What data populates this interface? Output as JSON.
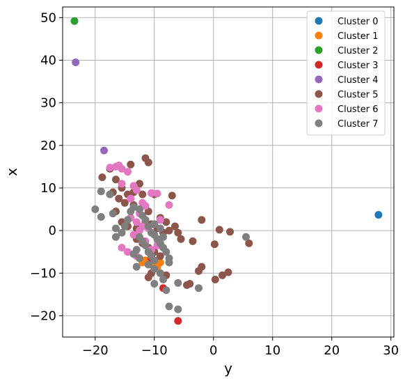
{
  "chart_data": {
    "type": "scatter",
    "title": "",
    "xlabel": "y",
    "ylabel": "x",
    "xlim": [
      -25.5,
      30.5
    ],
    "ylim": [
      -25.0,
      52.5
    ],
    "xticks": [
      -20,
      -10,
      0,
      10,
      20,
      30
    ],
    "yticks": [
      -20,
      -10,
      0,
      10,
      20,
      30,
      40,
      50
    ],
    "xtick_labels": [
      "−20",
      "−10",
      "0",
      "10",
      "20",
      "30"
    ],
    "ytick_labels": [
      "−20",
      "−10",
      "0",
      "10",
      "20",
      "30",
      "40",
      "50"
    ],
    "grid": true,
    "legend_position": "upper-right",
    "series": [
      {
        "name": "Cluster 0",
        "color": "#1f77b4",
        "points": [
          [
            27.9,
            3.7
          ]
        ]
      },
      {
        "name": "Cluster 1",
        "color": "#ff7f0e",
        "points": [
          [
            -12.0,
            -7.5
          ],
          [
            -11.5,
            -7.0
          ],
          [
            -10.5,
            -8.0
          ],
          [
            -9.5,
            -8.5
          ],
          [
            -9.0,
            -7.5
          ]
        ]
      },
      {
        "name": "Cluster 2",
        "color": "#2ca02c",
        "points": [
          [
            -23.5,
            49.2
          ]
        ]
      },
      {
        "name": "Cluster 3",
        "color": "#d62728",
        "points": [
          [
            -8.5,
            -13.5
          ],
          [
            -6.0,
            -21.2
          ],
          [
            -10.5,
            -6.5
          ]
        ]
      },
      {
        "name": "Cluster 4",
        "color": "#9467bd",
        "points": [
          [
            -23.3,
            39.5
          ],
          [
            -18.5,
            18.8
          ]
        ]
      },
      {
        "name": "Cluster 5",
        "color": "#8c564b",
        "points": [
          [
            -18.8,
            12.5
          ],
          [
            -17.5,
            14.5
          ],
          [
            -16.5,
            12.0
          ],
          [
            -15.5,
            10.0
          ],
          [
            -14.0,
            15.5
          ],
          [
            -12.5,
            11.0
          ],
          [
            -11.5,
            17.0
          ],
          [
            -11.0,
            16.0
          ],
          [
            -14.5,
            8.5
          ],
          [
            -13.5,
            9.0
          ],
          [
            -12.0,
            8.5
          ],
          [
            -10.0,
            8.5
          ],
          [
            -7.0,
            8.2
          ],
          [
            -15.0,
            6.5
          ],
          [
            -13.5,
            6.0
          ],
          [
            -12.5,
            5.0
          ],
          [
            -11.0,
            4.5
          ],
          [
            -16.5,
            4.5
          ],
          [
            -15.5,
            2.0
          ],
          [
            -14.5,
            1.0
          ],
          [
            -13.0,
            0.5
          ],
          [
            -11.5,
            2.0
          ],
          [
            -10.5,
            1.5
          ],
          [
            -9.5,
            0.5
          ],
          [
            -8.5,
            -0.5
          ],
          [
            -7.5,
            0.0
          ],
          [
            -6.5,
            1.0
          ],
          [
            -6.0,
            -0.5
          ],
          [
            -5.5,
            -2.0
          ],
          [
            -2.0,
            2.5
          ],
          [
            -3.5,
            -2.5
          ],
          [
            1.0,
            0.2
          ],
          [
            2.8,
            -0.3
          ],
          [
            0.2,
            -3.2
          ],
          [
            6.0,
            -3.0
          ],
          [
            -13.0,
            -2.0
          ],
          [
            -12.0,
            -3.0
          ],
          [
            -11.0,
            -4.0
          ],
          [
            -10.0,
            -5.0
          ],
          [
            -9.0,
            -6.0
          ],
          [
            -10.5,
            -10.0
          ],
          [
            -11.0,
            -11.0
          ],
          [
            -8.0,
            -10.5
          ],
          [
            -2.0,
            -8.5
          ],
          [
            -2.5,
            -9.5
          ],
          [
            -4.5,
            -12.8
          ],
          [
            -4.0,
            -12.5
          ],
          [
            0.3,
            -11.5
          ],
          [
            1.5,
            -10.5
          ],
          [
            2.5,
            -9.8
          ],
          [
            -16.0,
            7.5
          ],
          [
            -17.0,
            9.0
          ],
          [
            -8.0,
            2.0
          ],
          [
            -9.0,
            3.0
          ]
        ]
      },
      {
        "name": "Cluster 6",
        "color": "#e377c2",
        "points": [
          [
            -17.5,
            14.8
          ],
          [
            -16.5,
            15.0
          ],
          [
            -16.0,
            15.3
          ],
          [
            -15.5,
            14.5
          ],
          [
            -14.5,
            13.8
          ],
          [
            -13.5,
            10.5
          ],
          [
            -13.0,
            9.5
          ],
          [
            -15.5,
            11.0
          ],
          [
            -10.5,
            8.8
          ],
          [
            -9.5,
            8.7
          ],
          [
            -12.0,
            6.5
          ],
          [
            -11.5,
            5.8
          ],
          [
            -14.0,
            7.5
          ],
          [
            -12.5,
            4.0
          ],
          [
            -14.0,
            3.0
          ],
          [
            -13.0,
            2.0
          ],
          [
            -12.0,
            1.0
          ],
          [
            -11.0,
            0.5
          ],
          [
            -9.0,
            2.5
          ],
          [
            -7.5,
            6.0
          ],
          [
            -15.5,
            -4.0
          ],
          [
            -14.5,
            -5.0
          ],
          [
            -13.0,
            -6.0
          ],
          [
            -10.5,
            -4.5
          ],
          [
            -9.5,
            -3.5
          ],
          [
            -11.5,
            -2.5
          ],
          [
            -12.5,
            0.0
          ],
          [
            -13.5,
            -1.0
          ]
        ]
      },
      {
        "name": "Cluster 7",
        "color": "#7f7f7f",
        "points": [
          [
            -20.0,
            5.0
          ],
          [
            -19.0,
            3.2
          ],
          [
            -19.0,
            9.2
          ],
          [
            -17.5,
            8.5
          ],
          [
            -17.0,
            4.0
          ],
          [
            -16.5,
            0.5
          ],
          [
            -16.5,
            -1.5
          ],
          [
            -15.5,
            -0.5
          ],
          [
            -15.0,
            1.0
          ],
          [
            -14.5,
            2.5
          ],
          [
            -14.0,
            4.5
          ],
          [
            -13.5,
            5.5
          ],
          [
            -12.5,
            5.0
          ],
          [
            -12.0,
            3.5
          ],
          [
            -11.5,
            2.5
          ],
          [
            -11.0,
            1.0
          ],
          [
            -10.5,
            -0.5
          ],
          [
            -10.0,
            -1.0
          ],
          [
            -9.5,
            -2.0
          ],
          [
            -9.0,
            -3.0
          ],
          [
            -8.5,
            -4.0
          ],
          [
            -8.0,
            -5.0
          ],
          [
            -7.5,
            -6.5
          ],
          [
            -7.5,
            -7.5
          ],
          [
            -12.5,
            -1.5
          ],
          [
            -12.0,
            -2.5
          ],
          [
            -11.5,
            -3.5
          ],
          [
            -11.0,
            -5.0
          ],
          [
            -10.5,
            -6.0
          ],
          [
            -10.0,
            -7.0
          ],
          [
            -13.0,
            -4.5
          ],
          [
            -13.5,
            -5.5
          ],
          [
            -12.5,
            -6.5
          ],
          [
            -13.0,
            -8.5
          ],
          [
            -11.0,
            -8.0
          ],
          [
            -10.0,
            -9.0
          ],
          [
            -9.0,
            -10.0
          ],
          [
            -8.5,
            -11.5
          ],
          [
            -10.0,
            -12.5
          ],
          [
            -8.0,
            -14.0
          ],
          [
            -7.5,
            -17.8
          ],
          [
            -6.0,
            -18.5
          ],
          [
            -6.0,
            -12.3
          ],
          [
            -2.5,
            -13.5
          ],
          [
            5.5,
            -1.5
          ],
          [
            -9.0,
            0.5
          ],
          [
            -8.5,
            -1.5
          ],
          [
            -10.0,
            1.5
          ]
        ]
      }
    ]
  }
}
